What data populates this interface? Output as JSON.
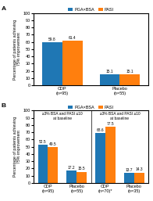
{
  "chart_data": [
    {
      "type": "bar",
      "title": "A",
      "categories": [
        "CDP\n(n=95)",
        "Placebo\n(n=55)"
      ],
      "series": [
        {
          "name": "PGA×BSA",
          "values": [
            59.8,
            15.1
          ]
        },
        {
          "name": "PASI",
          "values": [
            61.4,
            15.1
          ]
        }
      ],
      "ylabel": "Percentage of patients achieving\n75% improvement",
      "ylim": [
        0,
        100
      ],
      "yticks": [
        0,
        10,
        20,
        30,
        40,
        50,
        60,
        70,
        80,
        90,
        100
      ],
      "data_labels": true,
      "legend": "top"
    },
    {
      "type": "bar",
      "title": "B",
      "categories": [
        "CDP\n(n=95)",
        "Placebo\n(n=55)",
        "CDP\n(n=70)*",
        "Placebo\n(n=35)"
      ],
      "series": [
        {
          "name": "PGA×BSA",
          "values": [
            52.5,
            17.2,
            68.6,
            13.7
          ]
        },
        {
          "name": "PASI",
          "values": [
            49.5,
            15.5,
            77.5,
            14.3
          ]
        }
      ],
      "annotations": [
        "≥3% BSA and PASI ≤10\nat baseline",
        "≥3% BSA and PASI ≥10\nat baseline"
      ],
      "ylabel": "Percentage of patients achieving\n75% improvement",
      "ylim": [
        0,
        100
      ],
      "yticks": [
        0,
        10,
        20,
        30,
        40,
        50,
        60,
        70,
        80,
        90,
        100
      ],
      "data_labels": true,
      "legend": "top"
    }
  ]
}
